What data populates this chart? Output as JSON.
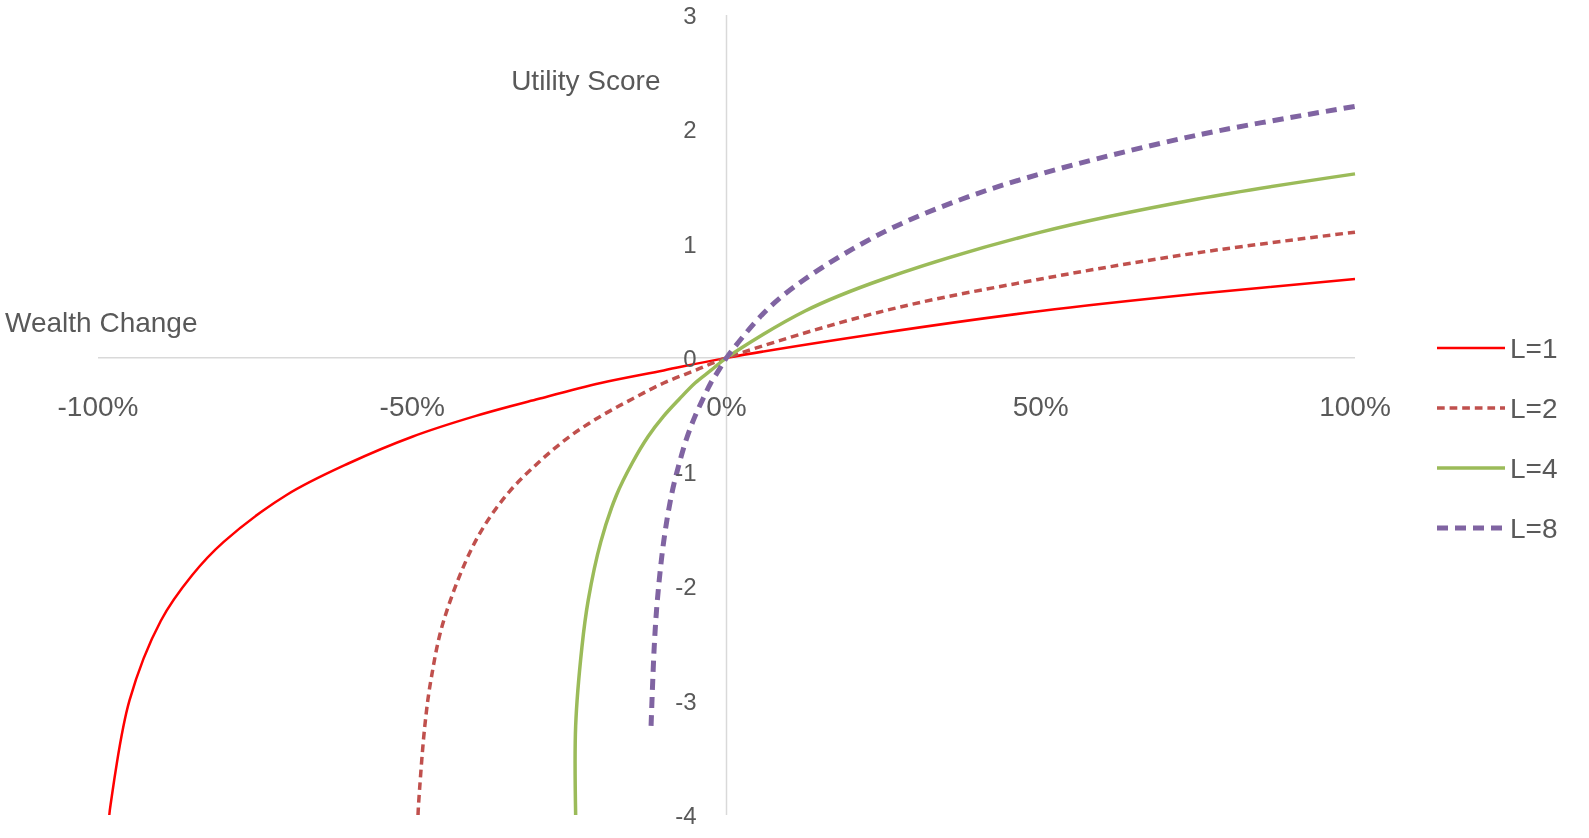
{
  "chart_data": {
    "type": "line",
    "xlabel": "Wealth Change",
    "ylabel": "Utility Score",
    "xlim": [
      -1,
      1
    ],
    "ylim": [
      -4,
      3
    ],
    "xticks": [
      {
        "value": -1,
        "label": "-100%"
      },
      {
        "value": -0.5,
        "label": "-50%"
      },
      {
        "value": 0,
        "label": "0%"
      },
      {
        "value": 0.5,
        "label": "50%"
      },
      {
        "value": 1,
        "label": "100%"
      }
    ],
    "yticks": [
      -4,
      -3,
      -2,
      -1,
      0,
      1,
      2,
      3
    ],
    "grid": false,
    "legend": "right",
    "marker": "none",
    "series": [
      {
        "name": "L=1",
        "color": "#ff0000",
        "line_style": "solid",
        "x": [
          -0.982,
          -0.98,
          -0.95,
          -0.9,
          -0.85,
          -0.8,
          -0.7,
          -0.6,
          -0.5,
          -0.4,
          -0.3,
          -0.2,
          -0.1,
          0,
          0.25,
          0.5,
          0.75,
          1
        ],
        "values": [
          -4.0,
          -3.91,
          -3.0,
          -2.3,
          -1.9,
          -1.61,
          -1.2,
          -0.92,
          -0.69,
          -0.51,
          -0.36,
          -0.22,
          -0.11,
          0,
          0.22,
          0.41,
          0.56,
          0.69
        ]
      },
      {
        "name": "L=2",
        "color": "#c0504d",
        "line_style": "dashed",
        "x": [
          -0.4908,
          -0.49,
          -0.48,
          -0.47,
          -0.45,
          -0.4,
          -0.35,
          -0.3,
          -0.25,
          -0.2,
          -0.15,
          -0.1,
          -0.05,
          0,
          0.25,
          0.5,
          0.75,
          1
        ],
        "values": [
          -4.0,
          -3.91,
          -3.22,
          -2.81,
          -2.3,
          -1.61,
          -1.2,
          -0.92,
          -0.69,
          -0.51,
          -0.36,
          -0.22,
          -0.11,
          0,
          0.41,
          0.69,
          0.92,
          1.1
        ]
      },
      {
        "name": "L=4",
        "color": "#9bbb59",
        "line_style": "solid",
        "x": [
          -0.24,
          -0.24,
          -0.23,
          -0.22,
          -0.2,
          -0.175,
          -0.15,
          -0.125,
          -0.1,
          -0.075,
          -0.05,
          -0.025,
          0,
          0.125,
          0.25,
          0.5,
          0.75,
          1
        ],
        "values": [
          -4.0,
          -3.22,
          -2.53,
          -2.12,
          -1.61,
          -1.2,
          -0.92,
          -0.69,
          -0.51,
          -0.36,
          -0.22,
          -0.11,
          0,
          0.41,
          0.69,
          1.1,
          1.39,
          1.61
        ]
      },
      {
        "name": "L=8",
        "color": "#8064a2",
        "line_style": "dashed",
        "x": [
          -0.12,
          -0.115,
          -0.11,
          -0.1,
          -0.0875,
          -0.075,
          -0.0625,
          -0.05,
          -0.0375,
          -0.025,
          -0.0125,
          0,
          0.0625,
          0.125,
          0.25,
          0.375,
          0.5,
          0.75,
          1
        ],
        "values": [
          -3.22,
          -2.53,
          -2.12,
          -1.61,
          -1.2,
          -0.92,
          -0.69,
          -0.51,
          -0.36,
          -0.22,
          -0.11,
          0,
          0.41,
          0.69,
          1.1,
          1.39,
          1.61,
          1.95,
          2.2
        ]
      }
    ]
  }
}
